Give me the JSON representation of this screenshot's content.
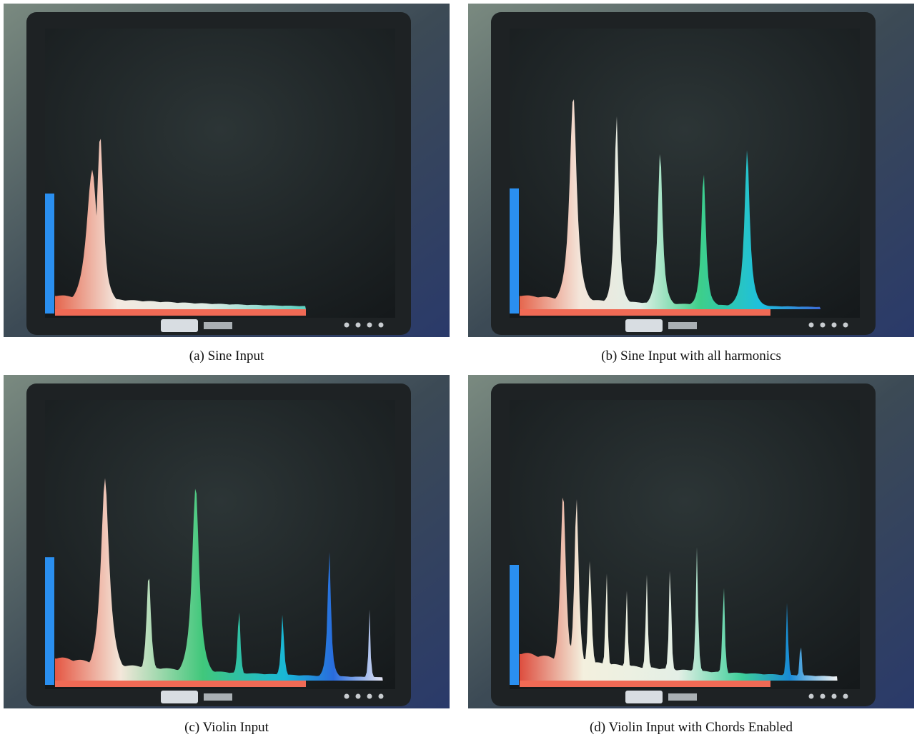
{
  "figure": {
    "captions": [
      "(a) Sine Input",
      "(b) Sine Input with all harmonics",
      "(c) Violin Input",
      "(d) Violin Input with Chords Enabled"
    ]
  }
}
